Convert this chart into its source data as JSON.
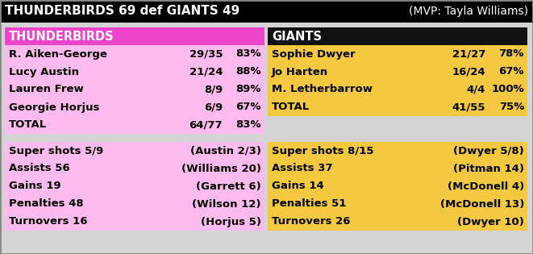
{
  "title_left": "THUNDERBIRDS 69 def GIANTS 49",
  "title_right": "(MVP: Tayla Williams)",
  "title_bg": "#000000",
  "outer_bg": "#d4d4d4",
  "border_color": "#555555",
  "tb_header": "THUNDERBIRDS",
  "tb_header_bg": "#ee44cc",
  "tb_data_bg": "#ffbbee",
  "tb_shooters": [
    [
      "R. Aiken-George",
      "29/35",
      "83%"
    ],
    [
      "Lucy Austin",
      "21/24",
      "88%"
    ],
    [
      "Lauren Frew",
      "8/9",
      "89%"
    ],
    [
      "Georgie Horjus",
      "6/9",
      "67%"
    ],
    [
      "TOTAL",
      "64/77",
      "83%"
    ]
  ],
  "tb_stats": [
    [
      "Super shots 5/9",
      "(Austin 2/3)"
    ],
    [
      "Assists 56",
      "(Williams 20)"
    ],
    [
      "Gains 19",
      "(Garrett 6)"
    ],
    [
      "Penalties 48",
      "(Wilson 12)"
    ],
    [
      "Turnovers 16",
      "(Horjus 5)"
    ]
  ],
  "gi_header": "GIANTS",
  "gi_header_bg": "#111111",
  "gi_data_bg": "#f5c842",
  "gi_shooters": [
    [
      "Sophie Dwyer",
      "21/27",
      "78%"
    ],
    [
      "Jo Harten",
      "16/24",
      "67%"
    ],
    [
      "M. Letherbarrow",
      "4/4",
      "100%"
    ],
    [
      "TOTAL",
      "41/55",
      "75%"
    ]
  ],
  "gi_stats": [
    [
      "Super shots 8/15",
      "(Dwyer 5/8)"
    ],
    [
      "Assists 37",
      "(Pitman 14)"
    ],
    [
      "Gains 14",
      "(McDonell 4)"
    ],
    [
      "Penalties 51",
      "(McDonell 13)"
    ],
    [
      "Turnovers 26",
      "(Dwyer 10)"
    ]
  ],
  "fig_w": 6.61,
  "fig_h": 3.15,
  "dpi": 100
}
